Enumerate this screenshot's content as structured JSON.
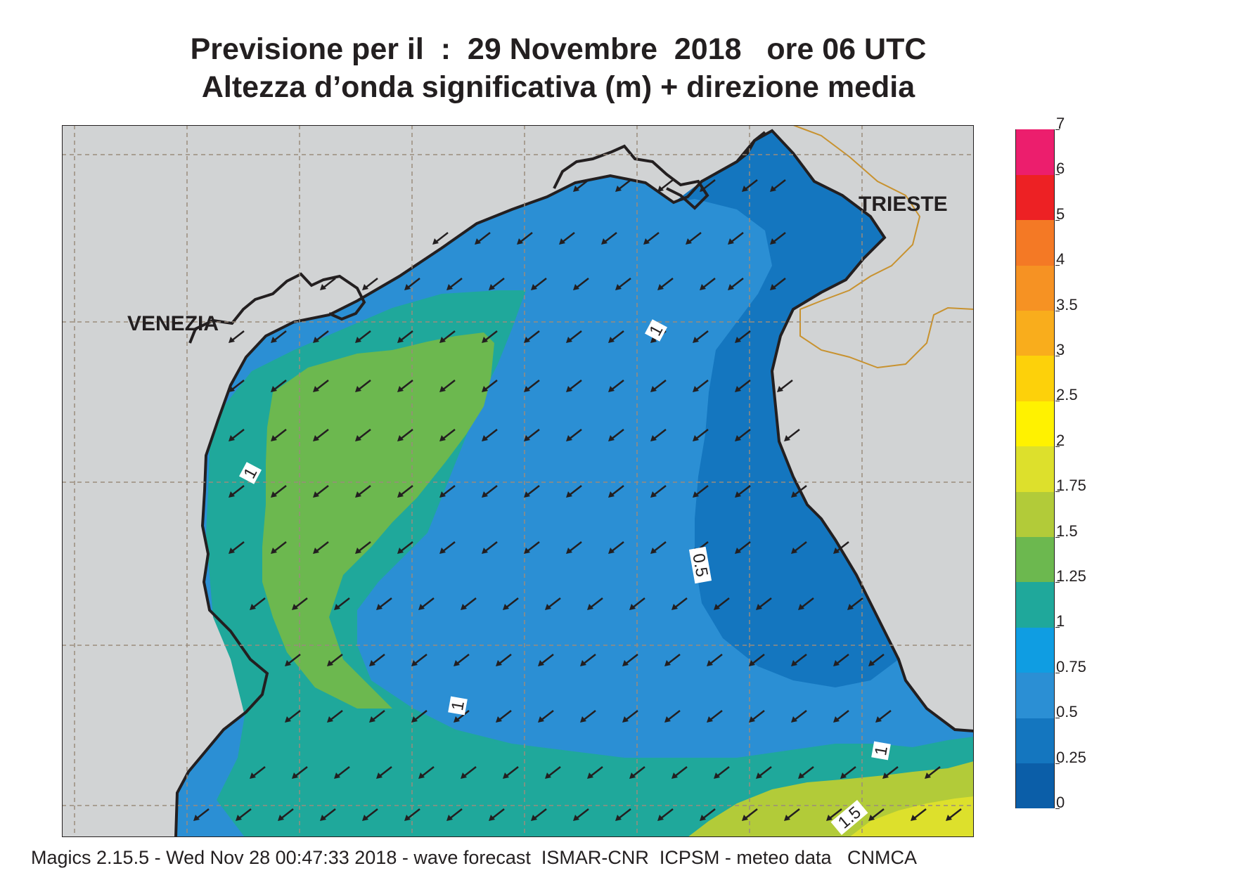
{
  "header": {
    "line1": "Previsione per il  :  29 Novembre  2018   ore 06 UTC",
    "line2": "Altezza d’onda significativa (m) + direzione media"
  },
  "map": {
    "places": [
      "VENEZIA",
      "TRIESTE"
    ],
    "contour_labels": [
      "1",
      "1",
      "0.5",
      "1",
      "1",
      "1.5"
    ],
    "wave_direction": "toward south-west",
    "colors": {
      "land": "#d1d3d4",
      "coast": "#231f20",
      "border": "#c8922f",
      "grid": "#9a8c7c",
      "arrow": "#231f20"
    }
  },
  "legend": {
    "labels": [
      "0",
      "0.25",
      "0.5",
      "0.75",
      "1",
      "1.25",
      "1.5",
      "1.75",
      "2",
      "2.5",
      "3",
      "3.5",
      "4",
      "5",
      "6",
      "7"
    ],
    "colors": [
      "#0b5ea8",
      "#1476bf",
      "#2b8fd4",
      "#0f9de2",
      "#1fa89b",
      "#6cb84f",
      "#b2cb39",
      "#dde02c",
      "#fff200",
      "#fdd10a",
      "#f9ad1c",
      "#f69223",
      "#f47925",
      "#ed2124",
      "#ec1e6d"
    ]
  },
  "footer": {
    "text": "Magics 2.15.5 - Wed Nov 28 00:47:33 2018 - wave forecast  ISMAR-CNR  ICPSM - meteo data   CNMCA"
  }
}
